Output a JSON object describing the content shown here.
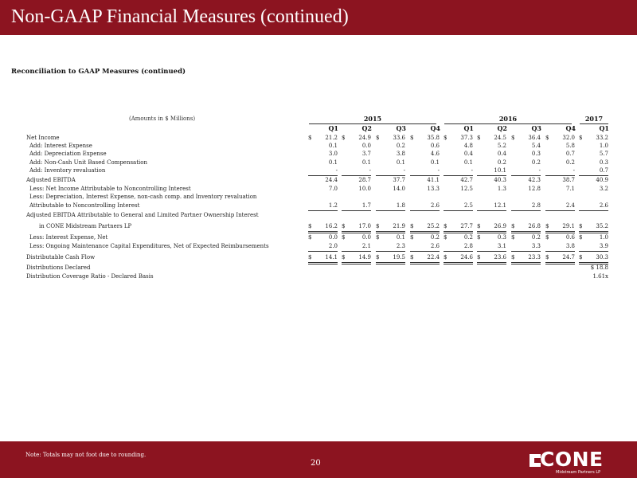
{
  "header": {
    "title": "Non-GAAP Financial Measures (continued)"
  },
  "subtitle": "Reconciliation to GAAP Measures (continued)",
  "table": {
    "amounts_label": "(Amounts in $ Millions)",
    "years": [
      "2015",
      "2016",
      "2017"
    ],
    "quarters": [
      "Q1",
      "Q2",
      "Q3",
      "Q4",
      "Q1",
      "Q2",
      "Q3",
      "Q4",
      "Q1"
    ],
    "rows": [
      {
        "label": "Net Income",
        "indent": 0,
        "dollar": true,
        "rule": "",
        "values": [
          "21.2",
          "24.9",
          "33.6",
          "35.8",
          "37.3",
          "24.5",
          "36.4",
          "32.0",
          "33.2"
        ]
      },
      {
        "label": "Add: Interest Expense",
        "indent": 1,
        "dollar": false,
        "rule": "",
        "values": [
          "0.1",
          "0.0",
          "0.2",
          "0.6",
          "4.8",
          "5.2",
          "5.4",
          "5.8",
          "1.0"
        ]
      },
      {
        "label": "Add: Depreciation Expense",
        "indent": 1,
        "dollar": false,
        "rule": "",
        "values": [
          "3.0",
          "3.7",
          "3.8",
          "4.6",
          "0.4",
          "0.4",
          "0.3",
          "0.7",
          "5.7"
        ]
      },
      {
        "label": "Add: Non-Cash Unit Based Compensation",
        "indent": 1,
        "dollar": false,
        "rule": "",
        "values": [
          "0.1",
          "0.1",
          "0.1",
          "0.1",
          "0.1",
          "0.2",
          "0.2",
          "0.2",
          "0.3"
        ]
      },
      {
        "label": "Add: Inventory revaluation",
        "indent": 1,
        "dollar": false,
        "rule": "ul",
        "values": [
          "-",
          "-",
          "-",
          "-",
          "-",
          "10.1",
          "-",
          "-",
          "0.7"
        ]
      },
      {
        "label": "Adjusted EBITDA",
        "indent": 0,
        "dollar": false,
        "rule": "",
        "values": [
          "24.4",
          "28.7",
          "37.7",
          "41.1",
          "42.7",
          "40.3",
          "42.3",
          "38.7",
          "40.9"
        ]
      },
      {
        "label": "Less: Net Income Attributable to Noncontrolling Interest",
        "indent": 1,
        "dollar": false,
        "rule": "",
        "values": [
          "7.0",
          "10.0",
          "14.0",
          "13.3",
          "12.5",
          "1.3",
          "12.8",
          "7.1",
          "3.2"
        ]
      },
      {
        "label": "Less: Depreciation, Interest Expense, non-cash comp. and Inventory revaluation",
        "indent": 1,
        "dollar": false,
        "rule": "",
        "values": [
          "",
          "",
          "",
          "",
          "",
          "",
          "",
          "",
          ""
        ]
      },
      {
        "label": "Attributable to Noncontrolling Interest",
        "indent": 1,
        "dollar": false,
        "rule": "ul",
        "values": [
          "1.2",
          "1.7",
          "1.8",
          "2.6",
          "2.5",
          "12.1",
          "2.8",
          "2.4",
          "2.6"
        ]
      },
      {
        "label": "Adjusted EBITDA Attributable to General and Limited Partner Ownership Interest",
        "indent": 0,
        "dollar": false,
        "rule": "",
        "values": [
          "",
          "",
          "",
          "",
          "",
          "",
          "",
          "",
          ""
        ]
      },
      {
        "label": "in CONE Midstream Partners LP",
        "indent": 2,
        "dollar": true,
        "rule": "dul",
        "values": [
          "16.2",
          "17.0",
          "21.9",
          "25.2",
          "27.7",
          "26.9",
          "26.8",
          "29.1",
          "35.2"
        ]
      },
      {
        "label": "Less: Interest Expense, Net",
        "indent": 1,
        "dollar": true,
        "rule": "",
        "values": [
          "0.0",
          "0.0",
          "0.1",
          "0.2",
          "0.2",
          "0.3",
          "0.2",
          "0.6",
          "1.0"
        ]
      },
      {
        "label": "Less: Ongoing Maintenance Capital Expenditures, Net of Expected Reimbursements",
        "indent": 1,
        "dollar": false,
        "rule": "ul",
        "values": [
          "2.0",
          "2.1",
          "2.3",
          "2.6",
          "2.8",
          "3.1",
          "3.3",
          "3.8",
          "3.9"
        ]
      },
      {
        "label": "Distributable Cash Flow",
        "indent": 0,
        "dollar": true,
        "rule": "dul",
        "values": [
          "14.1",
          "14.9",
          "19.5",
          "22.4",
          "24.6",
          "23.6",
          "23.3",
          "24.7",
          "30.3"
        ]
      },
      {
        "label": "Distributions Declared",
        "indent": 0,
        "dollar": false,
        "rule": "",
        "values": [
          "",
          "",
          "",
          "",
          "",
          "",
          "",
          "",
          "$ 18.8"
        ]
      },
      {
        "label": "Distribution Coverage Ratio - Declared Basis",
        "indent": 0,
        "dollar": false,
        "rule": "",
        "values": [
          "",
          "",
          "",
          "",
          "",
          "",
          "",
          "",
          "1.61x"
        ]
      }
    ]
  },
  "footer": {
    "note": "Note: Totals may not foot due to rounding.",
    "page_number": "20",
    "logo_text": "CONE",
    "logo_subtext": "Midstream Partners LP"
  },
  "colors": {
    "brand": "#8c1420",
    "text": "#222222"
  }
}
